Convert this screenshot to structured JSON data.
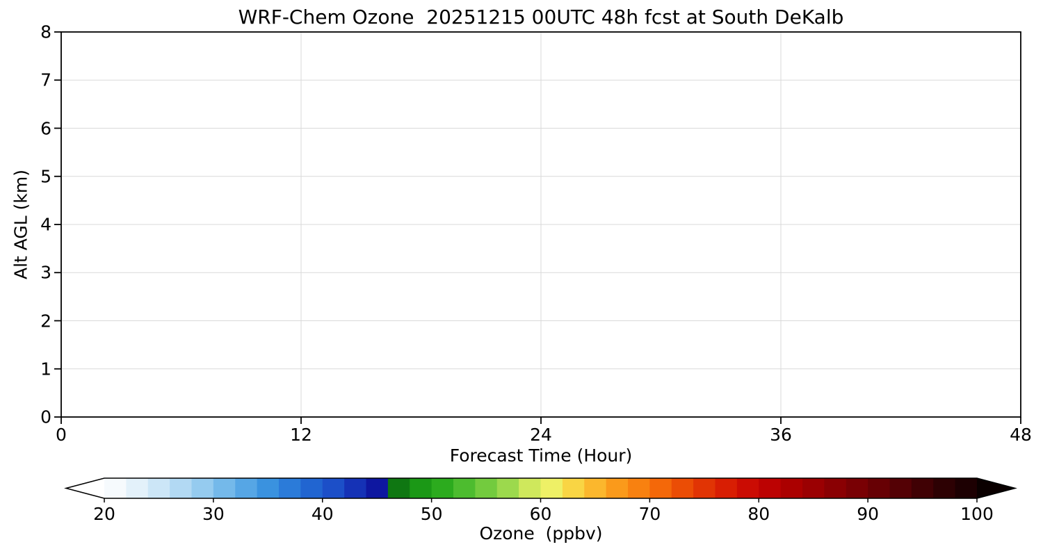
{
  "figure": {
    "background": "#ffffff",
    "text_color": "#000000"
  },
  "chart_data": {
    "type": "heatmap",
    "title": "WRF-Chem Ozone  20251215 00UTC 48h fcst at South DeKalb",
    "xlabel": "Forecast Time (Hour)",
    "ylabel": "Alt AGL (km)",
    "xlim": [
      0,
      48
    ],
    "ylim": [
      0,
      8
    ],
    "xticks": [
      0,
      12,
      24,
      36,
      48
    ],
    "yticks": [
      0,
      1,
      2,
      3,
      4,
      5,
      6,
      7,
      8
    ],
    "grid": true,
    "grid_color": "#d9d9d9",
    "spine_color": "#000000",
    "values": [],
    "colorbar": {
      "label": "Ozone  (ppbv)",
      "ticks": [
        20,
        30,
        40,
        50,
        60,
        70,
        80,
        90,
        100
      ],
      "range": [
        20,
        100
      ],
      "extend": "both",
      "extend_colors": {
        "under": "#ffffff",
        "over": "#0a0000"
      },
      "segment_step": 2,
      "stops": [
        [
          20,
          "#ffffff"
        ],
        [
          23,
          "#e3f1fa"
        ],
        [
          26,
          "#c0e0f5"
        ],
        [
          29,
          "#95cbef"
        ],
        [
          32,
          "#64b0e8"
        ],
        [
          35,
          "#3a92df"
        ],
        [
          38,
          "#2470d6"
        ],
        [
          41,
          "#1c4fc8"
        ],
        [
          43,
          "#1532b6"
        ],
        [
          45,
          "#0e17a0"
        ],
        [
          45.5,
          "#0a1278"
        ],
        [
          46,
          "#0b5e11"
        ],
        [
          48,
          "#128f12"
        ],
        [
          51,
          "#2cab1e"
        ],
        [
          54,
          "#5ec437"
        ],
        [
          57,
          "#9cd94d"
        ],
        [
          59,
          "#cfe85c"
        ],
        [
          61,
          "#eef066"
        ],
        [
          62,
          "#f6e44f"
        ],
        [
          64,
          "#fbc638"
        ],
        [
          66,
          "#fba822"
        ],
        [
          68,
          "#f98c14"
        ],
        [
          70,
          "#f7750b"
        ],
        [
          72,
          "#f05b06"
        ],
        [
          74,
          "#e63f04"
        ],
        [
          77,
          "#d81e03"
        ],
        [
          80,
          "#c40303"
        ],
        [
          83,
          "#ab0000"
        ],
        [
          86,
          "#930003"
        ],
        [
          90,
          "#700004"
        ],
        [
          94,
          "#4a0105"
        ],
        [
          97,
          "#2d0103"
        ],
        [
          100,
          "#150001"
        ]
      ]
    }
  }
}
